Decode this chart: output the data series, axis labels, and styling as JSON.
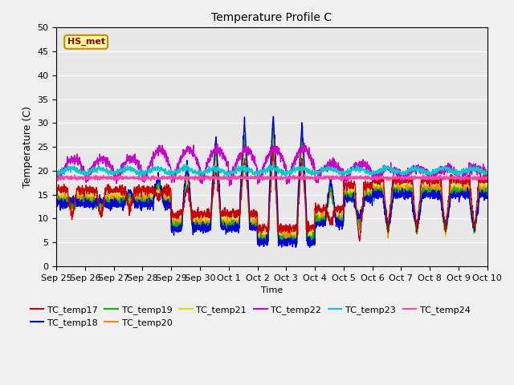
{
  "title": "Temperature Profile C",
  "xlabel": "Time",
  "ylabel": "Temperature (C)",
  "ylim": [
    0,
    50
  ],
  "annotation": "HS_met",
  "fig_bg_color": "#f0f0f0",
  "ax_bg_color": "#e8e8e8",
  "series_colors": {
    "TC_temp17": "#cc0000",
    "TC_temp18": "#0000dd",
    "TC_temp19": "#00bb00",
    "TC_temp20": "#ff8800",
    "TC_temp21": "#dddd00",
    "TC_temp22": "#cc00cc",
    "TC_temp23": "#00cccc",
    "TC_temp24": "#ff44aa"
  },
  "x_tick_labels": [
    "Sep 25",
    "Sep 26",
    "Sep 27",
    "Sep 28",
    "Sep 29",
    "Sep 30",
    "Oct 1",
    "Oct 2",
    "Oct 3",
    "Oct 4",
    "Oct 5",
    "Oct 6",
    "Oct 7",
    "Oct 8",
    "Oct 9",
    "Oct 10"
  ],
  "n_days": 15,
  "ppd": 144
}
